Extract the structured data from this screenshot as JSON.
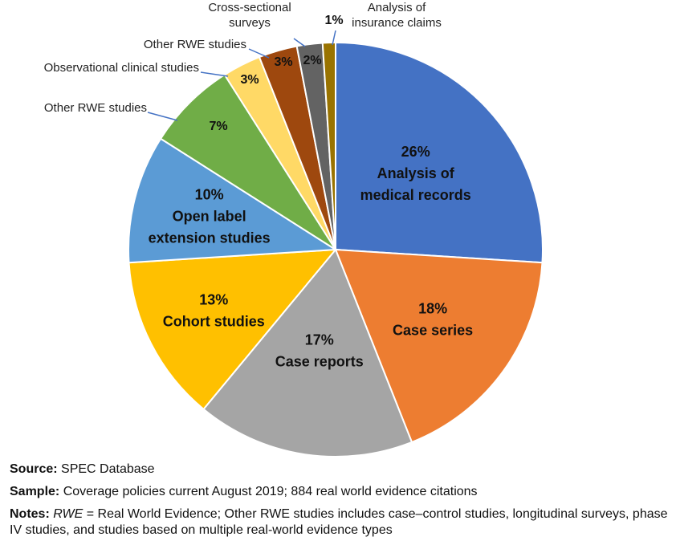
{
  "chart_data": {
    "type": "pie",
    "start_angle_deg": 0,
    "direction": "clockwise",
    "slices": [
      {
        "label": "Analysis of medical records",
        "value": 26,
        "pct_label": "26%",
        "color": "#4472C4",
        "label_inside": true,
        "label_lines": [
          "Analysis of",
          "medical records"
        ],
        "text_color": "#111111"
      },
      {
        "label": "Case series",
        "value": 18,
        "pct_label": "18%",
        "color": "#ED7D31",
        "label_inside": true,
        "label_lines": [
          "Case series"
        ],
        "text_color": "#111111"
      },
      {
        "label": "Case reports",
        "value": 17,
        "pct_label": "17%",
        "color": "#A5A5A5",
        "label_inside": true,
        "label_lines": [
          "Case reports"
        ],
        "text_color": "#111111"
      },
      {
        "label": "Cohort studies",
        "value": 13,
        "pct_label": "13%",
        "color": "#FFC000",
        "label_inside": true,
        "label_lines": [
          "Cohort studies"
        ],
        "text_color": "#111111"
      },
      {
        "label": "Open label extension studies",
        "value": 10,
        "pct_label": "10%",
        "color": "#5B9BD5",
        "label_inside": true,
        "label_lines": [
          "Open label",
          "extension studies"
        ],
        "text_color": "#111111"
      },
      {
        "label": "Other RWE studies",
        "value": 7,
        "pct_label": "7%",
        "color": "#70AD47",
        "label_inside": false,
        "callout_lines": [
          "Other RWE studies"
        ],
        "text_color": "#111111"
      },
      {
        "label": "Observational clinical studies",
        "value": 3,
        "pct_label": "3%",
        "color": "#FFD966",
        "label_inside": false,
        "callout_lines": [
          "Observational clinical studies"
        ],
        "text_color": "#111111"
      },
      {
        "label": "Other RWE studies",
        "value": 3,
        "pct_label": "3%",
        "color": "#9E480E",
        "label_inside": false,
        "callout_lines": [
          "Other RWE studies"
        ],
        "text_color": "#111111"
      },
      {
        "label": "Cross-sectional surveys",
        "value": 2,
        "pct_label": "2%",
        "color": "#636363",
        "label_inside": false,
        "callout_lines": [
          "Cross-sectional",
          "surveys"
        ],
        "text_color": "#111111"
      },
      {
        "label": "Analysis of insurance claims",
        "value": 1,
        "pct_label": "1%",
        "color": "#997300",
        "label_inside": false,
        "callout_lines": [
          "Analysis of",
          "insurance claims"
        ],
        "text_color": "#111111"
      }
    ]
  },
  "notes": {
    "source_label": "Source:",
    "source_text": " SPEC Database",
    "sample_label": "Sample:",
    "sample_text": " Coverage policies current August 2019; 884 real world evidence citations",
    "notes_label": "Notes:",
    "notes_rwe_italic": "RWE",
    "notes_text": " = Real World Evidence; Other RWE studies includes case–control studies, longitudinal surveys, phase IV studies, and studies based on multiple real-world evidence types"
  }
}
